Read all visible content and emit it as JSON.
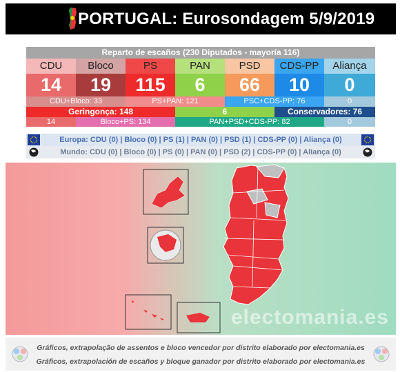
{
  "header": {
    "title": "PORTUGAL: Eurosondagem 5/9/2019"
  },
  "table": {
    "title": "Reparto de escaños (230 Diputados - mayoría 116)",
    "parties": [
      {
        "name": "CDU",
        "seats": 14,
        "name_bg": "#f4b8b8",
        "seat_bg": "#e96a6a"
      },
      {
        "name": "Bloco",
        "seats": 19,
        "name_bg": "#d4a3a3",
        "seat_bg": "#a83c3c"
      },
      {
        "name": "PS",
        "seats": 115,
        "name_bg": "#f04848",
        "seat_bg": "#ee2a2a"
      },
      {
        "name": "PAN",
        "seats": 6,
        "name_bg": "#b6e07c",
        "seat_bg": "#8fd24a"
      },
      {
        "name": "PSD",
        "seats": 66,
        "name_bg": "#f9c6a4",
        "seat_bg": "#f59a5a"
      },
      {
        "name": "CDS-PP",
        "seats": 10,
        "name_bg": "#3aa5f0",
        "seat_bg": "#1e8ae8"
      },
      {
        "name": "Aliança",
        "seats": 0,
        "name_bg": "#a3d4ea",
        "seat_bg": "#3fa9d8"
      }
    ],
    "row3": {
      "cdu_bloco": "CDU+Bloco: 33",
      "ps_pan": "PS+PAN: 121",
      "psd_cds": "PSC+CDS-PP: 76",
      "alianca": "0"
    },
    "row4": {
      "geringonca": "Geringonça: 148",
      "pan": "6",
      "conservadores": "Conservadores: 76"
    },
    "row5": {
      "cdu": "14",
      "bloco_ps": "Bloco+PS: 134",
      "pan_psd_cds": "PAN+PSD+CDS-PP: 82",
      "alianca": "0"
    },
    "colors": {
      "row3_left": "#d98e8e",
      "row3_mid": "#f08c8c",
      "row3_right": "#3aa5f0",
      "row3_end": "#a3c9dc",
      "row4_left": "#ee2a2a",
      "row4_mid": "#8fd24a",
      "row4_right": "#1f4e8c",
      "row5_a": "#e96a6a",
      "row5_b": "#e56fae",
      "row5_c": "#1fa886",
      "row5_d": "#a3c9dc"
    }
  },
  "euro": {
    "europa": "Europa: CDU (0) | Bloco (0) | PS (1) | PAN (0) | PSD (1) | CDS-PP (0) | Aliança (0)",
    "mundo": "Mundo: CDU (0) | Bloco (0) | PS (0) | PAN (0) | PSD (2) | CDS-PP (0) | Aliança (0)"
  },
  "map": {
    "watermark": "electomania.es",
    "winner_color": "#e8343a",
    "grey_color": "#bfbfbf"
  },
  "footer": {
    "line1": "Gráficos, extrapolação de assentos e bloco vencedor por distrito elaborado por electomania.es",
    "line2": "Gráficos, extrapolación de escaños y bloque ganador por distrito elaborado por electomania.es"
  },
  "chart_data": {
    "type": "table",
    "title": "Reparto de escaños (230 Diputados - mayoría 116)",
    "categories": [
      "CDU",
      "Bloco",
      "PS",
      "PAN",
      "PSD",
      "CDS-PP",
      "Aliança"
    ],
    "values": [
      14,
      19,
      115,
      6,
      66,
      10,
      0
    ]
  }
}
